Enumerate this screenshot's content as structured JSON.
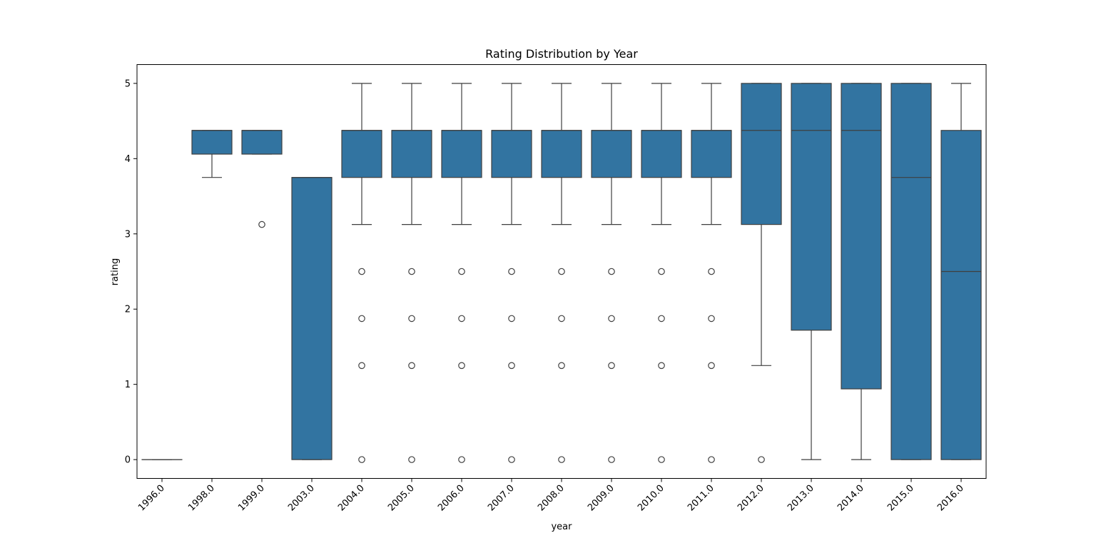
{
  "chart_data": {
    "type": "box",
    "title": "Rating Distribution by Year",
    "xlabel": "year",
    "ylabel": "rating",
    "ylim": [
      -0.25,
      5.25
    ],
    "yticks": [
      "0",
      "1",
      "2",
      "3",
      "4",
      "5"
    ],
    "grid": false,
    "legend": "none",
    "color": "#3274a1",
    "line_color": "#3f3f3f",
    "categories": [
      "1996.0",
      "1998.0",
      "1999.0",
      "2003.0",
      "2004.0",
      "2005.0",
      "2006.0",
      "2007.0",
      "2008.0",
      "2009.0",
      "2010.0",
      "2011.0",
      "2012.0",
      "2013.0",
      "2014.0",
      "2015.0",
      "2016.0"
    ],
    "boxes": [
      {
        "whisker_low": 0,
        "q1": 0,
        "median": 0,
        "q3": 0,
        "whisker_high": 0,
        "outliers": []
      },
      {
        "whisker_low": 3.75,
        "q1": 4.06,
        "median": 4.375,
        "q3": 4.375,
        "whisker_high": 4.375,
        "outliers": []
      },
      {
        "whisker_low": 4.06,
        "q1": 4.06,
        "median": 4.375,
        "q3": 4.375,
        "whisker_high": 4.375,
        "outliers": [
          3.125
        ]
      },
      {
        "whisker_low": 0,
        "q1": 0,
        "median": 3.75,
        "q3": 3.75,
        "whisker_high": 3.75,
        "outliers": []
      },
      {
        "whisker_low": 3.125,
        "q1": 3.75,
        "median": 4.375,
        "q3": 4.375,
        "whisker_high": 5,
        "outliers": [
          2.5,
          1.875,
          1.25,
          0
        ]
      },
      {
        "whisker_low": 3.125,
        "q1": 3.75,
        "median": 4.375,
        "q3": 4.375,
        "whisker_high": 5,
        "outliers": [
          2.5,
          1.875,
          1.25,
          0
        ]
      },
      {
        "whisker_low": 3.125,
        "q1": 3.75,
        "median": 4.375,
        "q3": 4.375,
        "whisker_high": 5,
        "outliers": [
          2.5,
          1.875,
          1.25,
          0
        ]
      },
      {
        "whisker_low": 3.125,
        "q1": 3.75,
        "median": 4.375,
        "q3": 4.375,
        "whisker_high": 5,
        "outliers": [
          2.5,
          1.875,
          1.25,
          0
        ]
      },
      {
        "whisker_low": 3.125,
        "q1": 3.75,
        "median": 4.375,
        "q3": 4.375,
        "whisker_high": 5,
        "outliers": [
          2.5,
          1.875,
          1.25,
          0
        ]
      },
      {
        "whisker_low": 3.125,
        "q1": 3.75,
        "median": 4.375,
        "q3": 4.375,
        "whisker_high": 5,
        "outliers": [
          2.5,
          1.875,
          1.25,
          0
        ]
      },
      {
        "whisker_low": 3.125,
        "q1": 3.75,
        "median": 4.375,
        "q3": 4.375,
        "whisker_high": 5,
        "outliers": [
          2.5,
          1.875,
          1.25,
          0
        ]
      },
      {
        "whisker_low": 3.125,
        "q1": 3.75,
        "median": 4.375,
        "q3": 4.375,
        "whisker_high": 5,
        "outliers": [
          2.5,
          1.875,
          1.25,
          0
        ]
      },
      {
        "whisker_low": 1.25,
        "q1": 3.125,
        "median": 4.375,
        "q3": 5,
        "whisker_high": 5,
        "outliers": [
          0
        ]
      },
      {
        "whisker_low": 0,
        "q1": 1.72,
        "median": 4.375,
        "q3": 5,
        "whisker_high": 5,
        "outliers": []
      },
      {
        "whisker_low": 0,
        "q1": 0.94,
        "median": 4.375,
        "q3": 5,
        "whisker_high": 5,
        "outliers": []
      },
      {
        "whisker_low": 0,
        "q1": 0,
        "median": 3.75,
        "q3": 5,
        "whisker_high": 5,
        "outliers": []
      },
      {
        "whisker_low": 0,
        "q1": 0,
        "median": 2.5,
        "q3": 4.375,
        "whisker_high": 5,
        "outliers": []
      }
    ]
  }
}
